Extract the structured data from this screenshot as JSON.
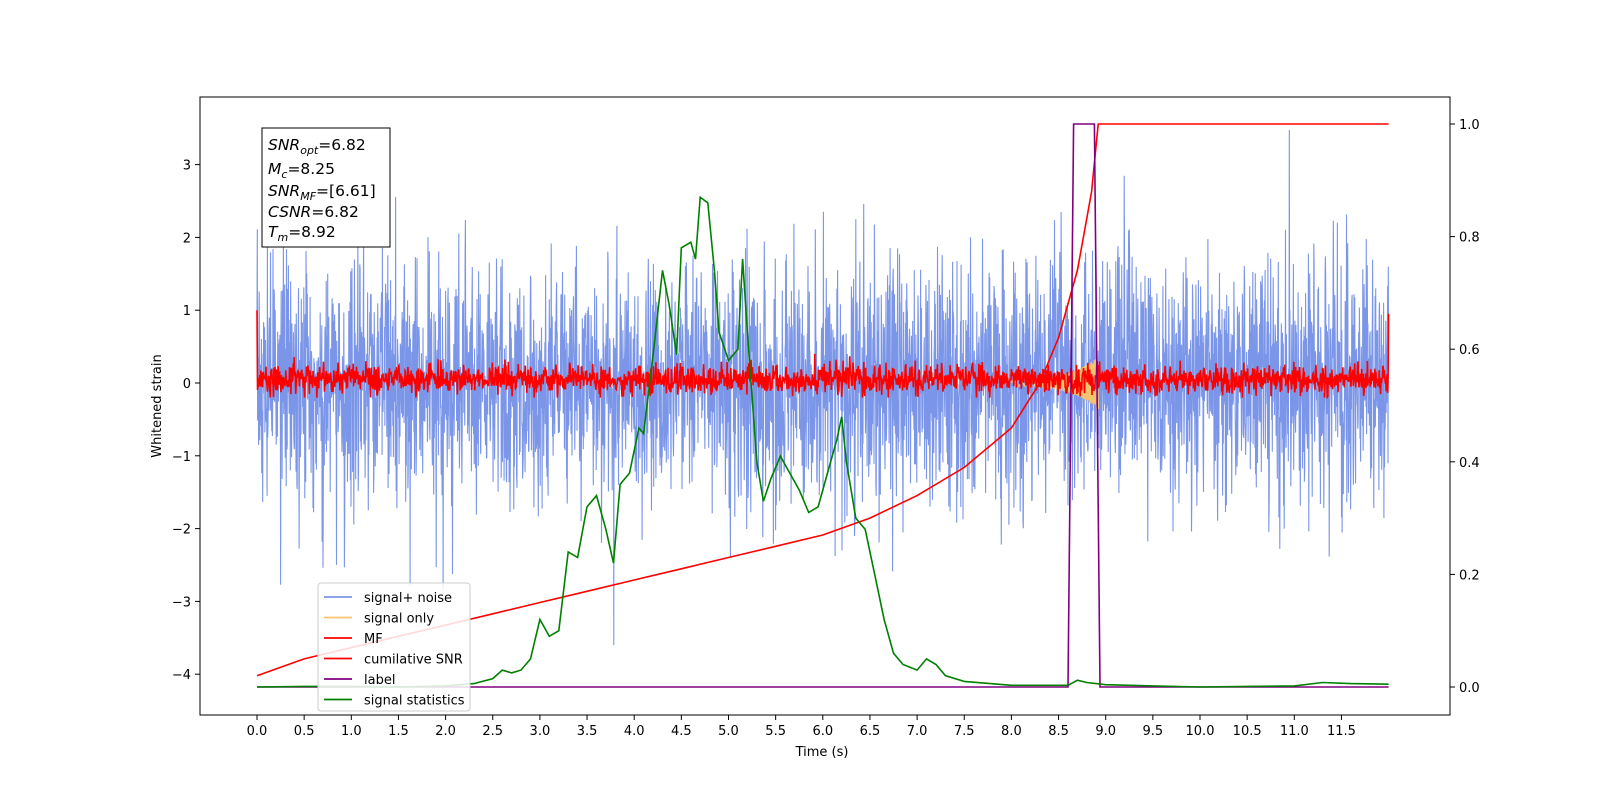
{
  "chart_data": {
    "type": "line",
    "xlabel": "Time (s)",
    "ylabel": "Whitened strain",
    "xlim": [
      -0.6,
      12.58
    ],
    "ylim": [
      -4.55,
      3.9
    ],
    "ylim_right": [
      -0.05,
      1.05
    ],
    "x_ticks": [
      "0.0",
      "0.5",
      "1.0",
      "1.5",
      "2.0",
      "2.5",
      "3.0",
      "3.5",
      "4.0",
      "4.5",
      "5.0",
      "5.5",
      "6.0",
      "6.5",
      "7.0",
      "7.5",
      "8.0",
      "8.5",
      "9.0",
      "9.5",
      "10.0",
      "10.5",
      "11.0",
      "11.5"
    ],
    "y_ticks_left": [
      "3",
      "2",
      "1",
      "0",
      "−1",
      "−2",
      "−3",
      "−4"
    ],
    "y_ticks_right": [
      "1.0",
      "0.8",
      "0.6",
      "0.4",
      "0.2",
      "0.0"
    ],
    "grid": false,
    "legend_position": "lower-left",
    "annotation": {
      "snr_opt": {
        "sym": "SNR",
        "sub": "opt",
        "value": "=6.82"
      },
      "mc": {
        "sym": "M",
        "sub": "c",
        "value": "=8.25"
      },
      "snr_mf": {
        "sym": "SNR",
        "sub": "MF",
        "value": "=[6.61]"
      },
      "csnr": {
        "sym": "CSNR",
        "sub": "",
        "value": "=6.82"
      },
      "tm": {
        "sym": "T",
        "sub": "m",
        "value": "=8.92"
      }
    },
    "series": [
      {
        "name": "signal+ noise",
        "color": "#7b96e8",
        "axis": "left",
        "description_range": [
          -3.6,
          3.6
        ],
        "x_range": [
          0,
          12
        ]
      },
      {
        "name": "signal only",
        "color": "#f5c46e",
        "axis": "left",
        "points": [
          [
            8.0,
            0.0
          ],
          [
            8.3,
            0.1
          ],
          [
            8.6,
            0.2
          ],
          [
            8.8,
            0.35
          ],
          [
            8.9,
            0.0
          ]
        ]
      },
      {
        "name": "MF",
        "color": "#ff0000",
        "axis": "left",
        "description_range": [
          -0.2,
          0.4
        ],
        "x_range": [
          0,
          12
        ]
      },
      {
        "name": "cumilative SNR",
        "color": "#ff0000",
        "axis": "right",
        "points": [
          [
            0.0,
            0.02
          ],
          [
            0.5,
            0.05
          ],
          [
            1.0,
            0.07
          ],
          [
            1.5,
            0.09
          ],
          [
            2.0,
            0.11
          ],
          [
            2.5,
            0.13
          ],
          [
            3.0,
            0.15
          ],
          [
            3.5,
            0.17
          ],
          [
            4.0,
            0.19
          ],
          [
            4.5,
            0.21
          ],
          [
            5.0,
            0.23
          ],
          [
            5.5,
            0.25
          ],
          [
            6.0,
            0.27
          ],
          [
            6.5,
            0.3
          ],
          [
            7.0,
            0.34
          ],
          [
            7.5,
            0.39
          ],
          [
            8.0,
            0.46
          ],
          [
            8.3,
            0.54
          ],
          [
            8.5,
            0.62
          ],
          [
            8.7,
            0.74
          ],
          [
            8.85,
            0.88
          ],
          [
            8.92,
            1.0
          ],
          [
            12.0,
            1.0
          ]
        ]
      },
      {
        "name": "label",
        "color": "#800080",
        "axis": "right",
        "points": [
          [
            0.0,
            0.0
          ],
          [
            8.6,
            0.0
          ],
          [
            8.66,
            1.0
          ],
          [
            8.88,
            1.0
          ],
          [
            8.94,
            0.0
          ],
          [
            12.0,
            0.0
          ]
        ]
      },
      {
        "name": "signal statistics",
        "color": "#008000",
        "axis": "right",
        "points": [
          [
            0.0,
            0.0
          ],
          [
            0.5,
            0.001
          ],
          [
            1.0,
            0.001
          ],
          [
            1.5,
            0.0
          ],
          [
            2.0,
            0.002
          ],
          [
            2.3,
            0.006
          ],
          [
            2.5,
            0.015
          ],
          [
            2.6,
            0.03
          ],
          [
            2.7,
            0.025
          ],
          [
            2.8,
            0.03
          ],
          [
            2.9,
            0.05
          ],
          [
            3.0,
            0.12
          ],
          [
            3.1,
            0.09
          ],
          [
            3.2,
            0.1
          ],
          [
            3.3,
            0.24
          ],
          [
            3.4,
            0.23
          ],
          [
            3.5,
            0.32
          ],
          [
            3.6,
            0.34
          ],
          [
            3.7,
            0.28
          ],
          [
            3.78,
            0.22
          ],
          [
            3.85,
            0.36
          ],
          [
            3.95,
            0.38
          ],
          [
            4.05,
            0.46
          ],
          [
            4.1,
            0.45
          ],
          [
            4.2,
            0.59
          ],
          [
            4.3,
            0.74
          ],
          [
            4.37,
            0.68
          ],
          [
            4.45,
            0.59
          ],
          [
            4.5,
            0.78
          ],
          [
            4.6,
            0.79
          ],
          [
            4.65,
            0.76
          ],
          [
            4.7,
            0.87
          ],
          [
            4.78,
            0.86
          ],
          [
            4.85,
            0.74
          ],
          [
            4.9,
            0.63
          ],
          [
            5.0,
            0.58
          ],
          [
            5.1,
            0.6
          ],
          [
            5.15,
            0.76
          ],
          [
            5.2,
            0.63
          ],
          [
            5.3,
            0.4
          ],
          [
            5.37,
            0.33
          ],
          [
            5.45,
            0.37
          ],
          [
            5.55,
            0.41
          ],
          [
            5.65,
            0.38
          ],
          [
            5.75,
            0.35
          ],
          [
            5.85,
            0.31
          ],
          [
            5.95,
            0.32
          ],
          [
            6.05,
            0.38
          ],
          [
            6.15,
            0.44
          ],
          [
            6.2,
            0.48
          ],
          [
            6.25,
            0.4
          ],
          [
            6.35,
            0.3
          ],
          [
            6.45,
            0.28
          ],
          [
            6.55,
            0.2
          ],
          [
            6.65,
            0.12
          ],
          [
            6.75,
            0.06
          ],
          [
            6.85,
            0.04
          ],
          [
            7.0,
            0.03
          ],
          [
            7.1,
            0.05
          ],
          [
            7.2,
            0.04
          ],
          [
            7.3,
            0.02
          ],
          [
            7.5,
            0.01
          ],
          [
            8.0,
            0.003
          ],
          [
            8.6,
            0.003
          ],
          [
            8.7,
            0.012
          ],
          [
            8.8,
            0.008
          ],
          [
            9.0,
            0.004
          ],
          [
            9.5,
            0.002
          ],
          [
            10.0,
            0.0
          ],
          [
            10.5,
            0.001
          ],
          [
            11.0,
            0.002
          ],
          [
            11.3,
            0.008
          ],
          [
            11.6,
            0.006
          ],
          [
            12.0,
            0.005
          ]
        ]
      }
    ]
  }
}
